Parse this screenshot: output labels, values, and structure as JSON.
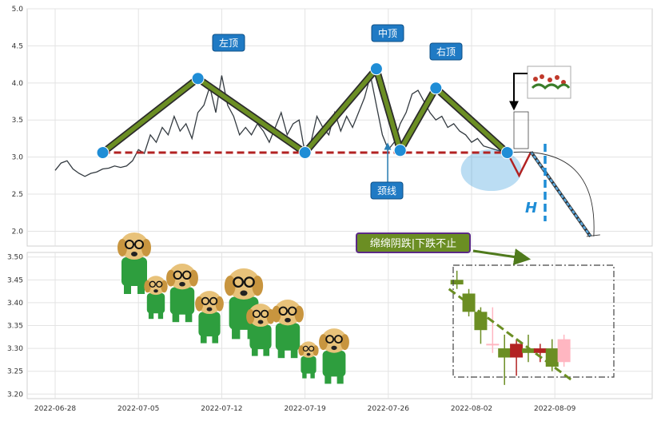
{
  "chart_data": [
    {
      "type": "line",
      "ylim": [
        1.8,
        5.0
      ],
      "y_ticks": [
        "5.0",
        "4.5",
        "4.0",
        "3.5",
        "3.0",
        "2.5",
        "2.0"
      ],
      "x_ticks": [
        "2022-06-28",
        "2022-07-05",
        "2022-07-12",
        "2022-07-19",
        "2022-07-26",
        "2022-08-02",
        "2022-08-09"
      ],
      "price_series": [
        [
          "2022-06-28",
          2.82
        ],
        [
          "2022-06-28",
          2.92
        ],
        [
          "2022-06-29",
          2.95
        ],
        [
          "2022-06-29",
          2.84
        ],
        [
          "2022-06-30",
          2.78
        ],
        [
          "2022-06-30",
          2.74
        ],
        [
          "2022-07-01",
          2.78
        ],
        [
          "2022-07-01",
          2.8
        ],
        [
          "2022-07-02",
          2.84
        ],
        [
          "2022-07-02",
          2.85
        ],
        [
          "2022-07-03",
          2.88
        ],
        [
          "2022-07-03",
          2.86
        ],
        [
          "2022-07-04",
          2.88
        ],
        [
          "2022-07-04",
          2.95
        ],
        [
          "2022-07-05",
          3.1
        ],
        [
          "2022-07-05",
          3.05
        ],
        [
          "2022-07-06",
          3.3
        ],
        [
          "2022-07-06",
          3.2
        ],
        [
          "2022-07-07",
          3.4
        ],
        [
          "2022-07-07",
          3.3
        ],
        [
          "2022-07-08",
          3.55
        ],
        [
          "2022-07-08",
          3.35
        ],
        [
          "2022-07-09",
          3.45
        ],
        [
          "2022-07-09",
          3.25
        ],
        [
          "2022-07-10",
          3.6
        ],
        [
          "2022-07-10",
          3.7
        ],
        [
          "2022-07-11",
          3.95
        ],
        [
          "2022-07-11",
          3.6
        ],
        [
          "2022-07-12",
          4.1
        ],
        [
          "2022-07-12",
          3.7
        ],
        [
          "2022-07-13",
          3.55
        ],
        [
          "2022-07-13",
          3.3
        ],
        [
          "2022-07-14",
          3.4
        ],
        [
          "2022-07-14",
          3.3
        ],
        [
          "2022-07-15",
          3.45
        ],
        [
          "2022-07-15",
          3.35
        ],
        [
          "2022-07-16",
          3.2
        ],
        [
          "2022-07-16",
          3.4
        ],
        [
          "2022-07-17",
          3.6
        ],
        [
          "2022-07-17",
          3.3
        ],
        [
          "2022-07-18",
          3.45
        ],
        [
          "2022-07-18",
          3.5
        ],
        [
          "2022-07-19",
          3.05
        ],
        [
          "2022-07-19",
          3.2
        ],
        [
          "2022-07-20",
          3.55
        ],
        [
          "2022-07-20",
          3.4
        ],
        [
          "2022-07-21",
          3.3
        ],
        [
          "2022-07-21",
          3.6
        ],
        [
          "2022-07-22",
          3.35
        ],
        [
          "2022-07-22",
          3.55
        ],
        [
          "2022-07-23",
          3.4
        ],
        [
          "2022-07-23",
          3.6
        ],
        [
          "2022-07-24",
          3.8
        ],
        [
          "2022-07-24",
          4.1
        ],
        [
          "2022-07-25",
          3.7
        ],
        [
          "2022-07-25",
          3.3
        ],
        [
          "2022-07-26",
          3.1
        ],
        [
          "2022-07-26",
          3.2
        ],
        [
          "2022-07-27",
          3.45
        ],
        [
          "2022-07-27",
          3.6
        ],
        [
          "2022-07-28",
          3.85
        ],
        [
          "2022-07-28",
          3.9
        ],
        [
          "2022-07-29",
          3.75
        ],
        [
          "2022-07-29",
          3.6
        ],
        [
          "2022-07-30",
          3.5
        ],
        [
          "2022-07-30",
          3.55
        ],
        [
          "2022-07-31",
          3.4
        ],
        [
          "2022-07-31",
          3.45
        ],
        [
          "2022-08-01",
          3.35
        ],
        [
          "2022-08-01",
          3.3
        ],
        [
          "2022-08-02",
          3.2
        ],
        [
          "2022-08-02",
          3.25
        ],
        [
          "2022-08-03",
          3.15
        ],
        [
          "2022-08-04",
          3.1
        ],
        [
          "2022-08-05",
          3.05
        ]
      ],
      "pattern_points": [
        {
          "date": "2022-07-02",
          "value": 3.06
        },
        {
          "date": "2022-07-10",
          "value": 4.06
        },
        {
          "date": "2022-07-19",
          "value": 3.06
        },
        {
          "date": "2022-07-25",
          "value": 4.19
        },
        {
          "date": "2022-07-27",
          "value": 3.09
        },
        {
          "date": "2022-07-30",
          "value": 3.93
        },
        {
          "date": "2022-08-05",
          "value": 3.06
        }
      ],
      "neckline": {
        "value": 3.06,
        "from": "2022-07-02",
        "to": "2022-08-05"
      },
      "projection": [
        {
          "date": "2022-08-05",
          "value": 3.06
        },
        {
          "date": "2022-08-06",
          "value": 2.75
        },
        {
          "date": "2022-08-07",
          "value": 3.07
        },
        {
          "date": "2022-08-12",
          "value": 1.93
        }
      ],
      "annotations": {
        "left_top": "左顶",
        "middle_top": "中顶",
        "right_top": "右顶",
        "neckline": "颈线",
        "height": "H"
      }
    },
    {
      "type": "candlestick",
      "ylim": [
        3.19,
        3.51
      ],
      "y_ticks": [
        "3.50",
        "3.45",
        "3.40",
        "3.35",
        "3.30",
        "3.25",
        "3.20"
      ],
      "x_ticks": [
        "2022-06-28",
        "2022-07-05",
        "2022-07-12",
        "2022-07-19",
        "2022-07-26",
        "2022-08-02",
        "2022-08-09"
      ],
      "candles": [
        {
          "date": "2022-07-31",
          "open": 3.45,
          "close": 3.44,
          "high": 3.47,
          "low": 3.43,
          "color": "green"
        },
        {
          "date": "2022-08-01",
          "open": 3.42,
          "close": 3.38,
          "high": 3.43,
          "low": 3.37,
          "color": "green"
        },
        {
          "date": "2022-08-02",
          "open": 3.38,
          "close": 3.34,
          "high": 3.39,
          "low": 3.31,
          "color": "green"
        },
        {
          "date": "2022-08-03",
          "open": 3.31,
          "close": 3.31,
          "high": 3.39,
          "low": 3.29,
          "color": "pink"
        },
        {
          "date": "2022-08-04",
          "open": 3.3,
          "close": 3.28,
          "high": 3.33,
          "low": 3.22,
          "color": "green"
        },
        {
          "date": "2022-08-05",
          "open": 3.28,
          "close": 3.31,
          "high": 3.32,
          "low": 3.24,
          "color": "red"
        },
        {
          "date": "2022-08-06",
          "open": 3.3,
          "close": 3.29,
          "high": 3.33,
          "low": 3.27,
          "color": "green"
        },
        {
          "date": "2022-08-07",
          "open": 3.29,
          "close": 3.3,
          "high": 3.31,
          "low": 3.27,
          "color": "red"
        },
        {
          "date": "2022-08-08",
          "open": 3.3,
          "close": 3.26,
          "high": 3.32,
          "low": 3.25,
          "color": "green"
        },
        {
          "date": "2022-08-09",
          "open": 3.27,
          "close": 3.32,
          "high": 3.33,
          "low": 3.26,
          "color": "pink"
        }
      ],
      "trend_line": [
        {
          "date": "2022-07-31",
          "value": 3.43
        },
        {
          "date": "2022-08-09",
          "value": 3.23
        }
      ],
      "callout": "绵绵阴跌|下跌不止"
    }
  ],
  "colors": {
    "pattern_green": "#6b8e23",
    "neckline_red": "#b22222",
    "marker_blue": "#1f8dd6",
    "label_bg": "#1f7ac4",
    "candle_green": "#6b8e23",
    "candle_red": "#b22222",
    "candle_pink": "#ffb6c1",
    "callout_border": "#5b2a86"
  },
  "decorations": [
    "dog-mascot-sticker",
    "flower-sticker"
  ]
}
